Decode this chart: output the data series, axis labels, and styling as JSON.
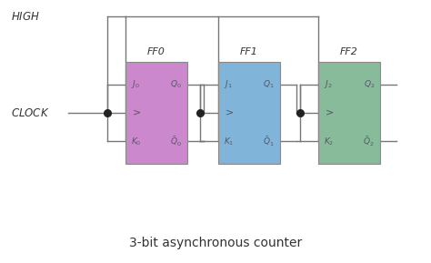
{
  "title": "3-bit asynchronous counter",
  "title_fontsize": 10,
  "bg": "#ffffff",
  "ff_colors": [
    "#cc88cc",
    "#80b4d8",
    "#88bb99"
  ],
  "ff_border": "#888888",
  "ff_labels": [
    "FF0",
    "FF1",
    "FF2"
  ],
  "note_text_color": "#555566",
  "line_color": "#777777",
  "dot_color": "#222222",
  "text_color": "#333333",
  "lw": 1.0,
  "dot_ms": 5.5,
  "figsize": [
    4.74,
    2.89
  ],
  "dpi": 100,
  "high_label": "HIGH",
  "clock_label": "CLOCK"
}
